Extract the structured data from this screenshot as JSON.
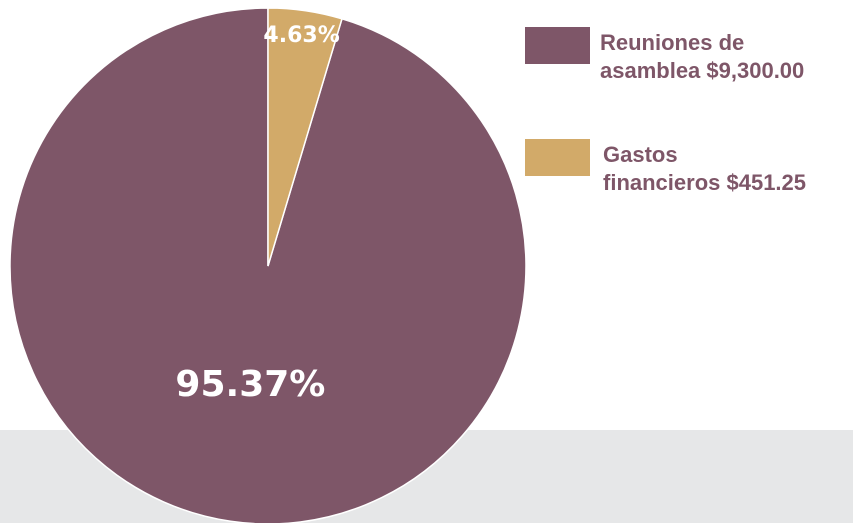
{
  "chart_data": {
    "type": "pie",
    "slices": [
      {
        "label": "Reuniones de asamblea",
        "value": 9300.0,
        "percent_label": "95.37%",
        "legend_line1": "Reuniones de",
        "legend_line2": "asamblea $9,300.00",
        "color": "#7e5668"
      },
      {
        "label": "Gastos financieros",
        "value": 451.25,
        "percent_label": "4.63%",
        "legend_line1": "Gastos",
        "legend_line2": "financieros $451.25",
        "color": "#d2aa69"
      }
    ],
    "legend_placement": "right",
    "slice_label_color": "#ffffff",
    "legend_text_color": "#7e5668"
  },
  "background": {
    "band_color": "#e6e7e8"
  }
}
